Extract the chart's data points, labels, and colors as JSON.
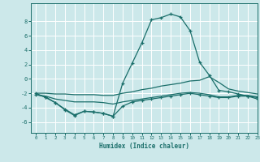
{
  "xlabel": "Humidex (Indice chaleur)",
  "background_color": "#cce8ea",
  "grid_color": "#ffffff",
  "line_color": "#1a6e6a",
  "xlim": [
    -0.5,
    23
  ],
  "ylim": [
    -7.5,
    10.5
  ],
  "yticks": [
    -6,
    -4,
    -2,
    0,
    2,
    4,
    6,
    8
  ],
  "xticks": [
    0,
    1,
    2,
    3,
    4,
    5,
    6,
    7,
    8,
    9,
    10,
    11,
    12,
    13,
    14,
    15,
    16,
    17,
    18,
    19,
    20,
    21,
    22,
    23
  ],
  "series1_x": [
    0,
    1,
    2,
    3,
    4,
    5,
    6,
    7,
    8,
    9,
    10,
    11,
    12,
    13,
    14,
    15,
    16,
    17,
    18,
    19,
    20,
    21,
    22,
    23
  ],
  "series1_y": [
    -2.0,
    -2.6,
    -3.3,
    -4.3,
    -5.1,
    -4.5,
    -4.6,
    -4.8,
    -5.2,
    -0.6,
    2.2,
    5.0,
    8.2,
    8.5,
    9.0,
    8.6,
    6.7,
    2.3,
    0.5,
    -1.6,
    -1.8,
    -2.1,
    -2.4,
    -2.8
  ],
  "series2_x": [
    0,
    1,
    2,
    3,
    4,
    5,
    6,
    7,
    8,
    9,
    10,
    11,
    12,
    13,
    14,
    15,
    16,
    17,
    18,
    19,
    20,
    21,
    22,
    23
  ],
  "series2_y": [
    -2.0,
    -2.0,
    -2.1,
    -2.1,
    -2.2,
    -2.2,
    -2.2,
    -2.3,
    -2.3,
    -2.0,
    -1.8,
    -1.5,
    -1.3,
    -1.0,
    -0.8,
    -0.6,
    -0.3,
    -0.2,
    0.3,
    -0.5,
    -1.4,
    -1.7,
    -1.9,
    -2.1
  ],
  "series3_x": [
    0,
    1,
    2,
    3,
    4,
    5,
    6,
    7,
    8,
    9,
    10,
    11,
    12,
    13,
    14,
    15,
    16,
    17,
    18,
    19,
    20,
    21,
    22,
    23
  ],
  "series3_y": [
    -2.2,
    -2.4,
    -2.8,
    -3.0,
    -3.2,
    -3.2,
    -3.2,
    -3.3,
    -3.5,
    -3.2,
    -3.0,
    -2.8,
    -2.6,
    -2.4,
    -2.2,
    -2.0,
    -1.9,
    -2.0,
    -2.2,
    -2.5,
    -2.5,
    -2.3,
    -2.3,
    -2.5
  ],
  "series4_x": [
    0,
    1,
    2,
    3,
    4,
    5,
    6,
    7,
    8,
    9,
    10,
    11,
    12,
    13,
    14,
    15,
    16,
    17,
    18,
    19,
    20,
    21,
    22,
    23
  ],
  "series4_y": [
    -2.2,
    -2.5,
    -3.3,
    -4.2,
    -5.0,
    -4.5,
    -4.6,
    -4.8,
    -5.2,
    -3.8,
    -3.2,
    -3.0,
    -2.8,
    -2.6,
    -2.4,
    -2.2,
    -2.0,
    -2.2,
    -2.4,
    -2.6,
    -2.6,
    -2.4,
    -2.4,
    -2.6
  ]
}
